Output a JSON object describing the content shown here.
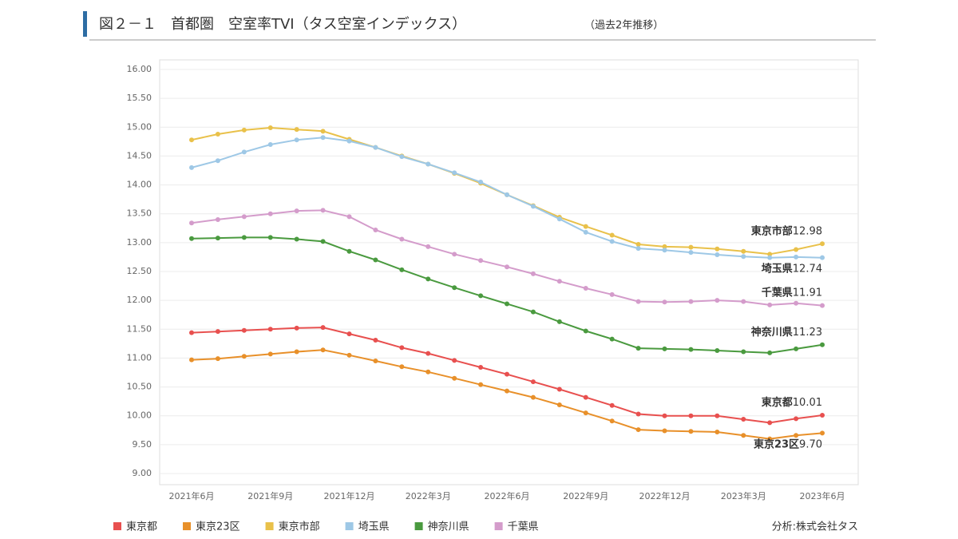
{
  "chart_data": {
    "type": "line",
    "title": "図２－１　首都圏　空室率TVI（タス空室インデックス）",
    "subtitle": "（過去2年推移）",
    "source": "分析:株式会社タス",
    "categories": [
      "2021年6月",
      null,
      null,
      "2021年9月",
      null,
      null,
      "2021年12月",
      null,
      null,
      "2022年3月",
      null,
      null,
      "2022年6月",
      null,
      null,
      "2022年9月",
      null,
      null,
      "2022年12月",
      null,
      null,
      "2023年3月",
      null,
      null,
      "2023年6月"
    ],
    "ylim": [
      9.0,
      16.0
    ],
    "yticks": [
      {
        "value": 9.0,
        "label": "9.00"
      },
      {
        "value": 9.5,
        "label": "9.50"
      },
      {
        "value": 10.0,
        "label": "10.00"
      },
      {
        "value": 10.5,
        "label": "10.50"
      },
      {
        "value": 11.0,
        "label": "11.00"
      },
      {
        "value": 11.5,
        "label": "11.50"
      },
      {
        "value": 12.0,
        "label": "12.00"
      },
      {
        "value": 12.5,
        "label": "12.50"
      },
      {
        "value": 13.0,
        "label": "13.00"
      },
      {
        "value": 13.5,
        "label": "13.50"
      },
      {
        "value": 14.0,
        "label": "14.00"
      },
      {
        "value": 14.5,
        "label": "14.50"
      },
      {
        "value": 15.0,
        "label": "15.00"
      },
      {
        "value": 15.5,
        "label": "15.50"
      },
      {
        "value": 16.0,
        "label": "16.00"
      }
    ],
    "grid": true,
    "legend": "bottom",
    "series": [
      {
        "name": "東京都",
        "color": "#e8504f",
        "values": [
          11.44,
          11.46,
          11.48,
          11.5,
          11.52,
          11.53,
          11.42,
          11.31,
          11.18,
          11.08,
          10.96,
          10.84,
          10.72,
          10.59,
          10.46,
          10.32,
          10.18,
          10.03,
          10.0,
          10.0,
          10.0,
          9.94,
          9.88,
          9.95,
          10.01
        ]
      },
      {
        "name": "東京23区",
        "color": "#e8902a",
        "values": [
          10.97,
          10.99,
          11.03,
          11.07,
          11.11,
          11.14,
          11.05,
          10.95,
          10.85,
          10.76,
          10.65,
          10.54,
          10.43,
          10.32,
          10.19,
          10.05,
          9.91,
          9.76,
          9.74,
          9.73,
          9.72,
          9.66,
          9.6,
          9.66,
          9.7
        ],
        "value_labels": [
          null,
          null,
          null,
          null,
          null,
          null,
          null,
          null,
          null,
          null,
          null,
          null,
          null,
          null,
          null,
          null,
          null,
          null,
          null,
          null,
          null,
          null,
          null,
          null,
          "9.70"
        ]
      },
      {
        "name": "東京市部",
        "color": "#e9c14a",
        "values": [
          14.78,
          14.88,
          14.95,
          14.99,
          14.96,
          14.93,
          14.79,
          14.65,
          14.5,
          14.36,
          14.2,
          14.03,
          13.83,
          13.64,
          13.44,
          13.28,
          13.13,
          12.97,
          12.93,
          12.92,
          12.89,
          12.85,
          12.8,
          12.88,
          12.98
        ]
      },
      {
        "name": "埼玉県",
        "color": "#9ec8e6",
        "values": [
          14.3,
          14.42,
          14.57,
          14.7,
          14.78,
          14.82,
          14.76,
          14.65,
          14.49,
          14.36,
          14.21,
          14.05,
          13.83,
          13.63,
          13.41,
          13.18,
          13.02,
          12.9,
          12.87,
          12.83,
          12.79,
          12.76,
          12.74,
          12.75,
          12.74
        ]
      },
      {
        "name": "神奈川県",
        "color": "#4a9a3f",
        "values": [
          13.07,
          13.08,
          13.09,
          13.09,
          13.06,
          13.02,
          12.85,
          12.7,
          12.53,
          12.37,
          12.22,
          12.08,
          11.94,
          11.8,
          11.63,
          11.47,
          11.33,
          11.17,
          11.16,
          11.15,
          11.13,
          11.11,
          11.09,
          11.16,
          11.23
        ]
      },
      {
        "name": "千葉県",
        "color": "#d49ccb",
        "values": [
          13.34,
          13.4,
          13.45,
          13.5,
          13.55,
          13.56,
          13.45,
          13.22,
          13.06,
          12.93,
          12.8,
          12.69,
          12.58,
          12.46,
          12.33,
          12.21,
          12.1,
          11.98,
          11.97,
          11.98,
          12.0,
          11.98,
          11.92,
          11.95,
          11.91
        ]
      }
    ]
  }
}
